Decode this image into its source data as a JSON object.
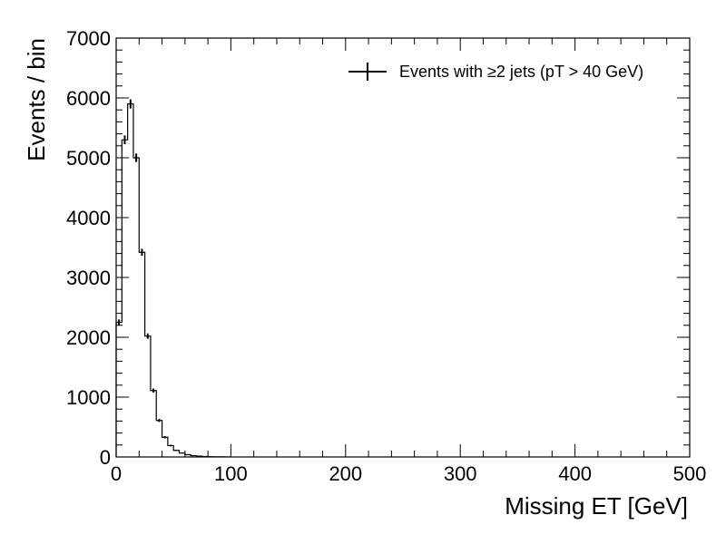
{
  "chart_data": {
    "type": "histogram",
    "xlabel": "Missing ET [GeV]",
    "ylabel": "Events / bin",
    "xlim": [
      0,
      500
    ],
    "ylim": [
      0,
      7000
    ],
    "xticks": [
      "0",
      "100",
      "200",
      "300",
      "400",
      "500"
    ],
    "yticks": [
      "0",
      "1000",
      "2000",
      "3000",
      "4000",
      "5000",
      "6000",
      "7000"
    ],
    "bin_width": 5,
    "bin_edges_start": 0,
    "values": [
      2250,
      5300,
      5900,
      5000,
      3420,
      2020,
      1110,
      610,
      330,
      190,
      110,
      65,
      38,
      22,
      13,
      8,
      5,
      3,
      2,
      1
    ],
    "legend": {
      "label": "Events with ≥2 jets (pT > 40 GeV)",
      "position": "top-right"
    },
    "grid": false
  }
}
